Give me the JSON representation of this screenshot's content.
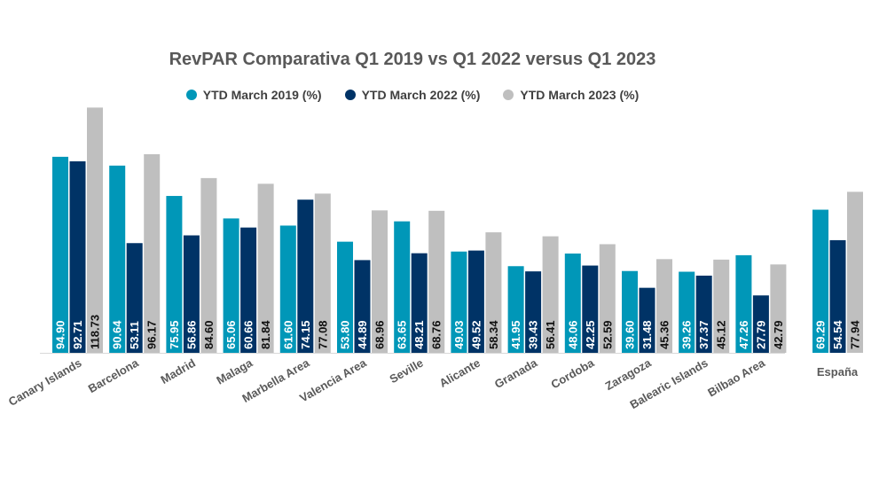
{
  "chart_data": {
    "type": "bar",
    "title": "RevPAR Comparativa Q1 2019 vs Q1 2022 versus Q1 2023",
    "categories": [
      "Canary Islands",
      "Barcelona",
      "Madrid",
      "Malaga",
      "Marbella Area",
      "Valencia Area",
      "Seville",
      "Alicante",
      "Granada",
      "Cordoba",
      "Zaragoza",
      "Balearic Islands",
      "Bilbao Area",
      "España"
    ],
    "series": [
      {
        "name": "YTD March 2019 (%)",
        "color": "#0097B8",
        "values": [
          94.9,
          90.64,
          75.95,
          65.06,
          61.6,
          53.8,
          63.65,
          49.03,
          41.95,
          48.06,
          39.6,
          39.26,
          47.26,
          69.29
        ]
      },
      {
        "name": "YTD March 2022 (%)",
        "color": "#003366",
        "values": [
          92.71,
          53.11,
          56.86,
          60.66,
          74.15,
          44.89,
          48.21,
          49.52,
          39.43,
          42.25,
          31.48,
          37.37,
          27.79,
          54.54
        ]
      },
      {
        "name": "YTD March 2023 (%)",
        "color": "#BFBFBF",
        "values": [
          118.73,
          96.17,
          84.6,
          81.84,
          77.08,
          68.96,
          68.76,
          58.34,
          56.41,
          52.59,
          45.36,
          45.12,
          42.79,
          77.94
        ]
      }
    ],
    "ylim": [
      0,
      120
    ],
    "legend_position": "top",
    "grid": false,
    "value_labels": [
      "94.90",
      "92.71",
      "118.73",
      "90.64",
      "53.11",
      "96.17",
      "75.95",
      "56.86",
      "84.60",
      "65.06",
      "60.66",
      "81.84",
      "61.60",
      "74.15",
      "77.08",
      "53.80",
      "44.89",
      "68.96",
      "63.65",
      "48.21",
      "68.76",
      "49.03",
      "49.52",
      "58.34",
      "41.95",
      "39.43",
      "56.41",
      "48.06",
      "42.25",
      "52.59",
      "39.60",
      "31.48",
      "45.36",
      "39.26",
      "37.37",
      "45.12",
      "47.26",
      "27.79",
      "42.79",
      "69.29",
      "54.54",
      "77.94"
    ]
  }
}
